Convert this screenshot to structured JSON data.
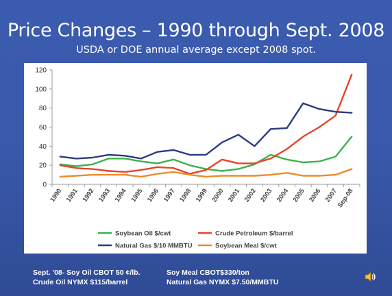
{
  "slide": {
    "title": "Price Changes – 1990 through Sept. 2008",
    "subtitle": "USDA or DOE annual average except 2008 spot."
  },
  "footer": {
    "line1_left": "Sept. '08- Soy Oil CBOT 50 ¢/lb.",
    "line1_right": "Soy Meal CBOT$330/ton",
    "line2_left": "Crude Oil NYMX $115/barrel",
    "line2_right": "Natural Gas  NYMX $7.50/MMBTU"
  },
  "icons": {
    "speaker": "speaker-icon"
  },
  "chart_data": {
    "type": "line",
    "categories": [
      "1990",
      "1991",
      "1992",
      "1993",
      "1994",
      "1995",
      "1996",
      "1997",
      "1998",
      "1999",
      "2000",
      "2001",
      "2002",
      "2003",
      "2004",
      "2005",
      "2006",
      "2007",
      "Sep-08"
    ],
    "ylim": [
      0,
      120
    ],
    "yticks": [
      0,
      20,
      40,
      60,
      80,
      100,
      120
    ],
    "grid": false,
    "legend_position": "bottom",
    "series": [
      {
        "name": "Soybean Oil $/cwt",
        "color": "#3cb24a",
        "values": [
          21,
          19,
          21,
          27,
          27,
          24,
          22,
          26,
          20,
          16,
          14,
          16,
          21,
          31,
          26,
          23,
          24,
          29,
          50
        ]
      },
      {
        "name": "Crude Petroleum $/barrel",
        "color": "#e8432a",
        "values": [
          20,
          17,
          16,
          14,
          13,
          15,
          18,
          17,
          11,
          15,
          26,
          22,
          22,
          27,
          37,
          50,
          60,
          72,
          115
        ]
      },
      {
        "name": "Natural Gas $/10 MMBTU",
        "color": "#2b3a7e",
        "values": [
          29,
          27,
          28,
          31,
          30,
          27,
          34,
          36,
          31,
          31,
          44,
          52,
          40,
          58,
          59,
          85,
          79,
          76,
          75
        ]
      },
      {
        "name": "Soybean Meal $/cwt",
        "color": "#ef8a2a",
        "values": [
          8,
          9,
          10,
          10,
          10,
          8,
          11,
          13,
          10,
          8,
          9,
          9,
          9,
          10,
          12,
          9,
          9,
          10,
          16
        ]
      }
    ]
  }
}
